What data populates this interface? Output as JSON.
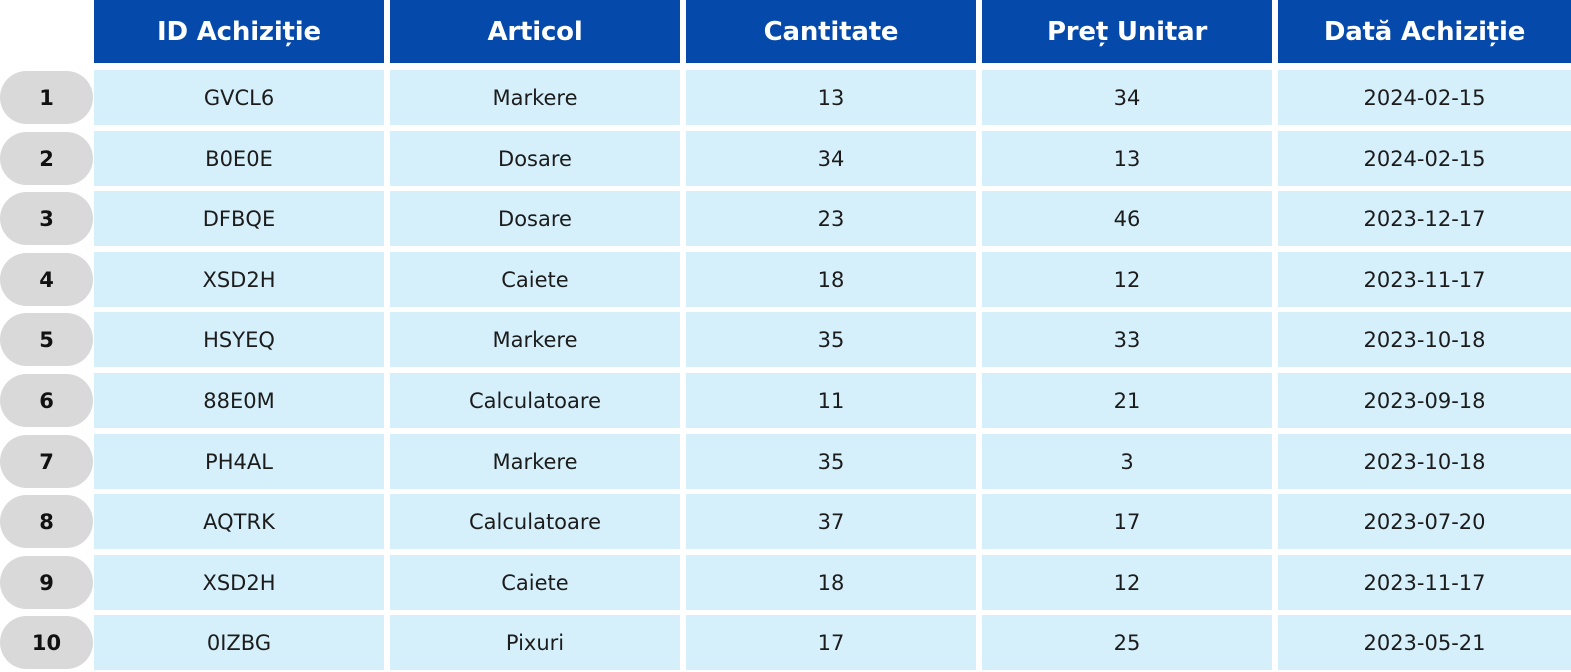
{
  "table": {
    "columns": [
      "ID Achiziție",
      "Articol",
      "Cantitate",
      "Preț Unitar",
      "Dată Achiziție"
    ],
    "rows": [
      {
        "index": "1",
        "id": "GVCL6",
        "item": "Markere",
        "qty": "13",
        "price": "34",
        "date": "2024-02-15"
      },
      {
        "index": "2",
        "id": "B0E0E",
        "item": "Dosare",
        "qty": "34",
        "price": "13",
        "date": "2024-02-15"
      },
      {
        "index": "3",
        "id": "DFBQE",
        "item": "Dosare",
        "qty": "23",
        "price": "46",
        "date": "2023-12-17"
      },
      {
        "index": "4",
        "id": "XSD2H",
        "item": "Caiete",
        "qty": "18",
        "price": "12",
        "date": "2023-11-17"
      },
      {
        "index": "5",
        "id": "HSYEQ",
        "item": "Markere",
        "qty": "35",
        "price": "33",
        "date": "2023-10-18"
      },
      {
        "index": "6",
        "id": "88E0M",
        "item": "Calculatoare",
        "qty": "11",
        "price": "21",
        "date": "2023-09-18"
      },
      {
        "index": "7",
        "id": "PH4AL",
        "item": "Markere",
        "qty": "35",
        "price": "3",
        "date": "2023-10-18"
      },
      {
        "index": "8",
        "id": "AQTRK",
        "item": "Calculatoare",
        "qty": "37",
        "price": "17",
        "date": "2023-07-20"
      },
      {
        "index": "9",
        "id": "XSD2H",
        "item": "Caiete",
        "qty": "18",
        "price": "12",
        "date": "2023-11-17"
      },
      {
        "index": "10",
        "id": "0IZBG",
        "item": "Pixuri",
        "qty": "17",
        "price": "25",
        "date": "2023-05-21"
      }
    ]
  },
  "colors": {
    "header_bg": "#0549ab",
    "header_text": "#ffffff",
    "cell_bg": "#d6f0fb",
    "row_index_bg": "#d9d9d9"
  }
}
